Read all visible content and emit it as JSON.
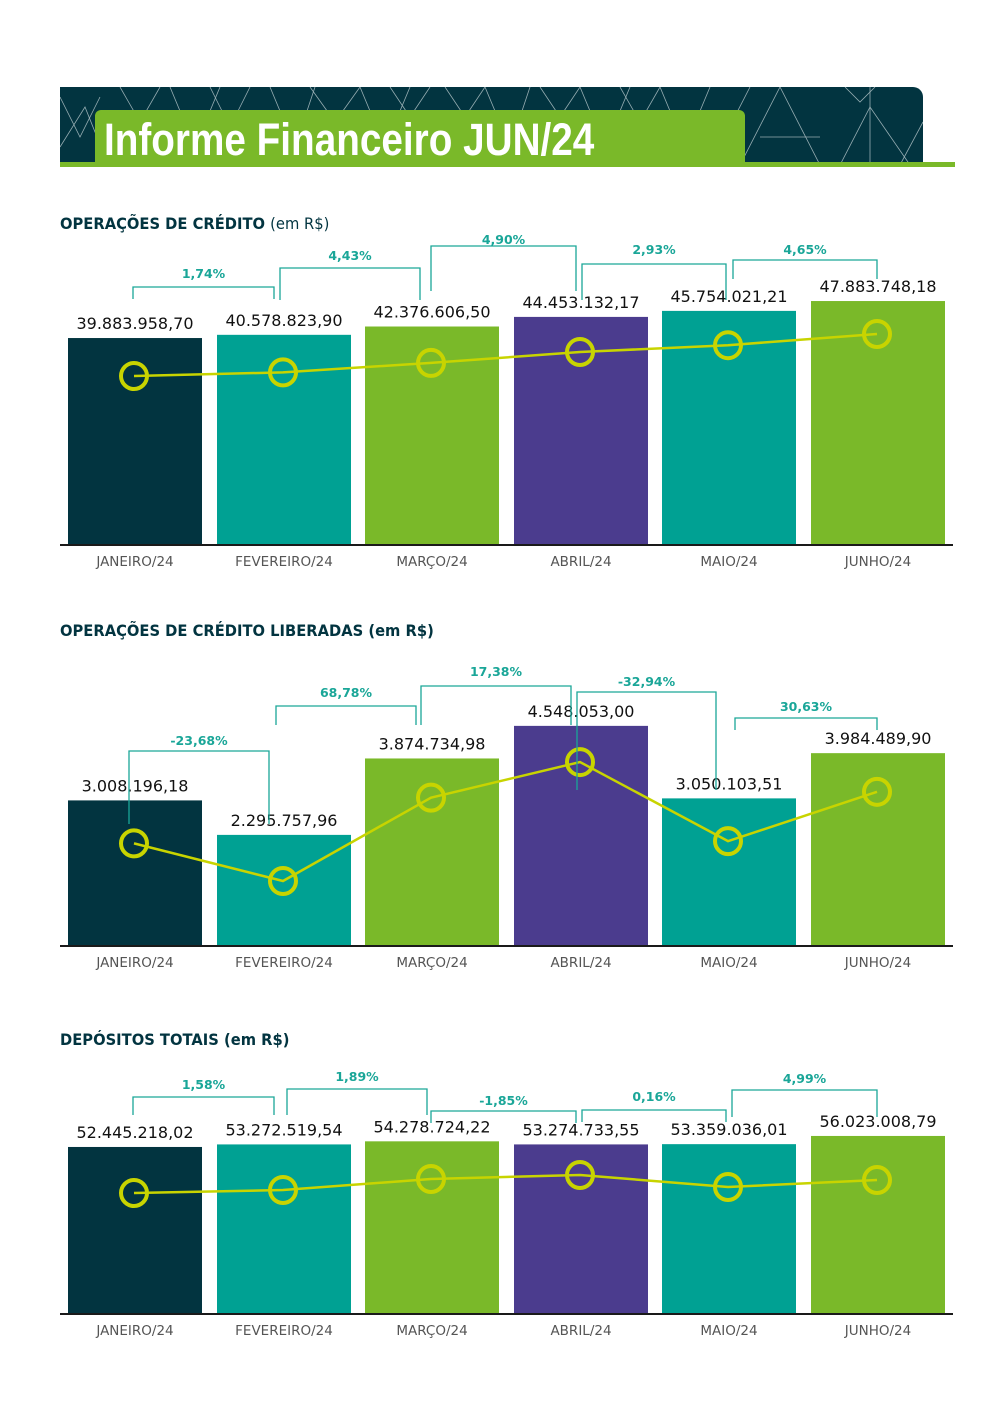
{
  "header": {
    "title": "Informe Financeiro JUN/24"
  },
  "colors": {
    "dark_teal": "#023440",
    "teal": "#00a193",
    "green": "#7ab929",
    "purple": "#4b3c8e",
    "line": "#c8d400",
    "pct_text": "#1aa698"
  },
  "chart_data": [
    {
      "type": "bar",
      "id": "operacoes-credito",
      "title": "OPERAÇÕES DE CRÉDITO",
      "title_unit": "(em R$)",
      "categories": [
        "JANEIRO/24",
        "FEVEREIRO/24",
        "MARÇO/24",
        "ABRIL/24",
        "MAIO/24",
        "JUNHO/24"
      ],
      "values": [
        39883958.7,
        40578823.9,
        42376606.5,
        44453132.17,
        45754021.21,
        47883748.18
      ],
      "value_labels": [
        "39.883.958,70",
        "40.578.823,90",
        "42.376.606,50",
        "44.453.132,17",
        "45.754.021,21",
        "47.883.748,18"
      ],
      "bar_colors": [
        "#023440",
        "#00a193",
        "#7ab929",
        "#4b3c8e",
        "#00a193",
        "#7ab929"
      ],
      "line_overlay": true,
      "changes": [
        "1,74%",
        "4,43%",
        "4,90%",
        "2,93%",
        "4,65%"
      ],
      "xlabel": "",
      "ylabel": ""
    },
    {
      "type": "bar",
      "id": "operacoes-credito-liberadas",
      "title": "OPERAÇÕES DE CRÉDITO LIBERADAS (em R$)",
      "title_unit": "",
      "categories": [
        "JANEIRO/24",
        "FEVEREIRO/24",
        "MARÇO/24",
        "ABRIL/24",
        "MAIO/24",
        "JUNHO/24"
      ],
      "values": [
        3008196.18,
        2295757.96,
        3874734.98,
        4548053.0,
        3050103.51,
        3984489.9
      ],
      "value_labels": [
        "3.008.196,18",
        "2.295.757,96",
        "3.874.734,98",
        "4.548.053,00",
        "3.050.103,51",
        "3.984.489,90"
      ],
      "bar_colors": [
        "#023440",
        "#00a193",
        "#7ab929",
        "#4b3c8e",
        "#00a193",
        "#7ab929"
      ],
      "line_overlay": true,
      "changes": [
        "-23,68%",
        "68,78%",
        "17,38%",
        "-32,94%",
        "30,63%"
      ],
      "xlabel": "",
      "ylabel": ""
    },
    {
      "type": "bar",
      "id": "depositos-totais",
      "title": "DEPÓSITOS TOTAIS (em R$)",
      "title_unit": "",
      "categories": [
        "JANEIRO/24",
        "FEVEREIRO/24",
        "MARÇO/24",
        "ABRIL/24",
        "MAIO/24",
        "JUNHO/24"
      ],
      "values": [
        52445218.02,
        53272519.54,
        54278724.22,
        53274733.55,
        53359036.01,
        56023008.79
      ],
      "value_labels": [
        "52.445.218,02",
        "53.272.519,54",
        "54.278.724,22",
        "53.274.733,55",
        "53.359.036,01",
        "56.023.008,79"
      ],
      "bar_colors": [
        "#023440",
        "#00a193",
        "#7ab929",
        "#4b3c8e",
        "#00a193",
        "#7ab929"
      ],
      "line_overlay": true,
      "changes": [
        "1,58%",
        "1,89%",
        "-1,85%",
        "0,16%",
        "4,99%"
      ],
      "xlabel": "",
      "ylabel": ""
    }
  ]
}
